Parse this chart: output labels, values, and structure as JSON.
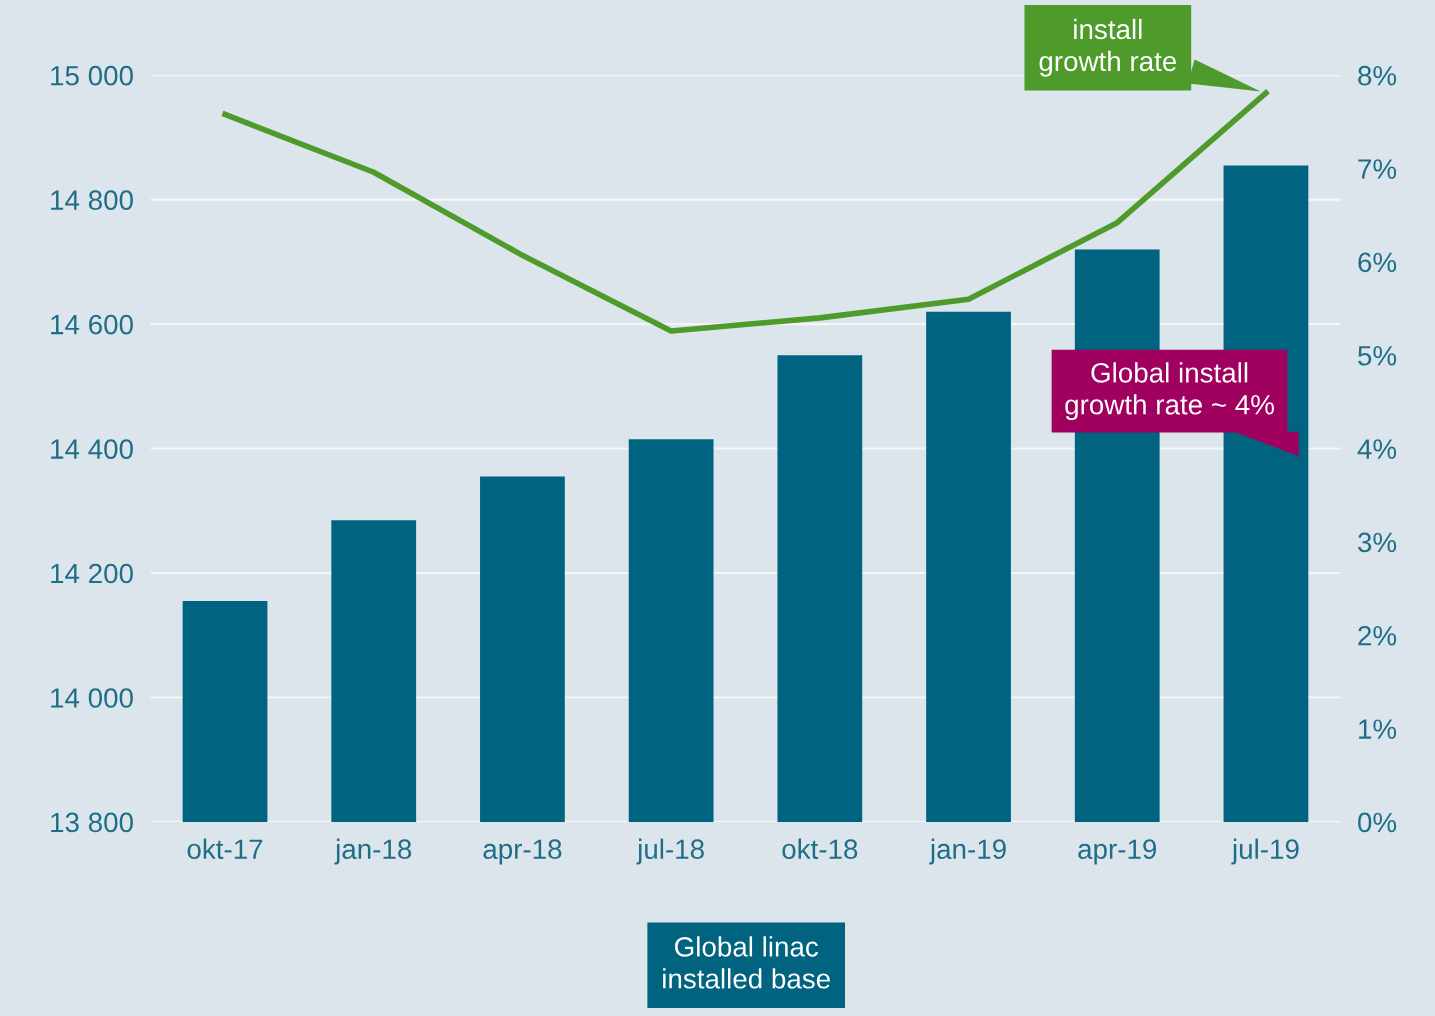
{
  "chart_data": {
    "type": "bar",
    "categories": [
      "okt-17",
      "jan-18",
      "apr-18",
      "jul-18",
      "okt-18",
      "jan-19",
      "apr-19",
      "jul-19"
    ],
    "series": [
      {
        "name": "Global linac installed base",
        "color": "#00637f",
        "values": [
          14155,
          14285,
          14355,
          14415,
          14550,
          14620,
          14720,
          14855
        ]
      },
      {
        "name": "install growth rate",
        "type": "line",
        "axis": "y2",
        "color": "#4e9a2b",
        "values": [
          7.58,
          6.96,
          6.07,
          5.26,
          5.4,
          5.6,
          6.42,
          7.81
        ]
      }
    ],
    "ylim": [
      13800,
      15000
    ],
    "yticks": [
      {
        "value": 13800,
        "label": "13 800"
      },
      {
        "value": 14000,
        "label": "14 000"
      },
      {
        "value": 14200,
        "label": "14 200"
      },
      {
        "value": 14400,
        "label": "14 400"
      },
      {
        "value": 14600,
        "label": "14 600"
      },
      {
        "value": 14800,
        "label": "14 800"
      },
      {
        "value": 15000,
        "label": "15 000"
      }
    ],
    "y2lim": [
      0,
      8
    ],
    "y2ticks": [
      {
        "value": 0,
        "label": "0%"
      },
      {
        "value": 1,
        "label": "1%"
      },
      {
        "value": 2,
        "label": "2%"
      },
      {
        "value": 3,
        "label": "3%"
      },
      {
        "value": 4,
        "label": "4%"
      },
      {
        "value": 5,
        "label": "5%"
      },
      {
        "value": 6,
        "label": "6%"
      },
      {
        "value": 7,
        "label": "7%"
      },
      {
        "value": 8,
        "label": "8%"
      }
    ],
    "annotations": [
      "Global install growth rate ~ 4%"
    ],
    "grid": "y",
    "legend": false,
    "marker": "none",
    "line_style": "solid"
  }
}
